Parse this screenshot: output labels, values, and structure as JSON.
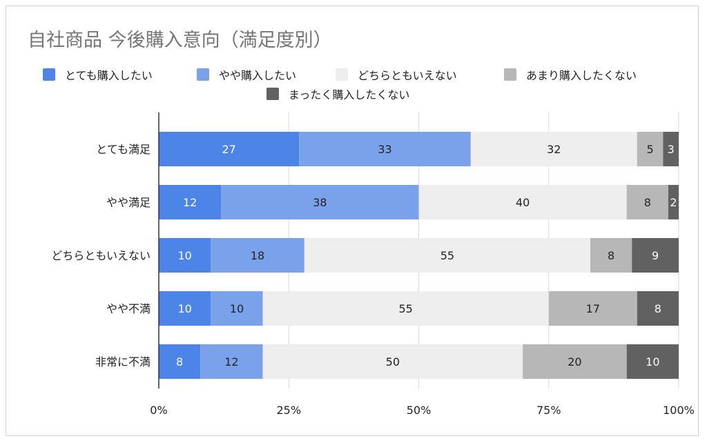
{
  "chart_data": {
    "type": "bar",
    "orientation": "horizontal",
    "stacked": "percent",
    "title": "自社商品  今後購入意向（満足度別）",
    "categories": [
      "とても満足",
      "やや満足",
      "どちらともいえない",
      "やや不満",
      "非常に不満"
    ],
    "series": [
      {
        "name": "とても購入したい",
        "color": "#4d84e8",
        "values": [
          27,
          12,
          10,
          10,
          8
        ]
      },
      {
        "name": "やや購入したい",
        "color": "#7aa2ea",
        "values": [
          33,
          38,
          18,
          10,
          12
        ]
      },
      {
        "name": "どちらともいえない",
        "color": "#eeeeee",
        "values": [
          32,
          40,
          55,
          55,
          50
        ]
      },
      {
        "name": "あまり購入したくない",
        "color": "#b7b7b7",
        "values": [
          5,
          8,
          8,
          17,
          20
        ]
      },
      {
        "name": "まったく購入したくない",
        "color": "#616161",
        "values": [
          3,
          2,
          9,
          8,
          10
        ]
      }
    ],
    "xlim": [
      0,
      100
    ],
    "x_ticks": [
      "0%",
      "25%",
      "50%",
      "75%",
      "100%"
    ],
    "grid": true,
    "legend_position": "top"
  }
}
